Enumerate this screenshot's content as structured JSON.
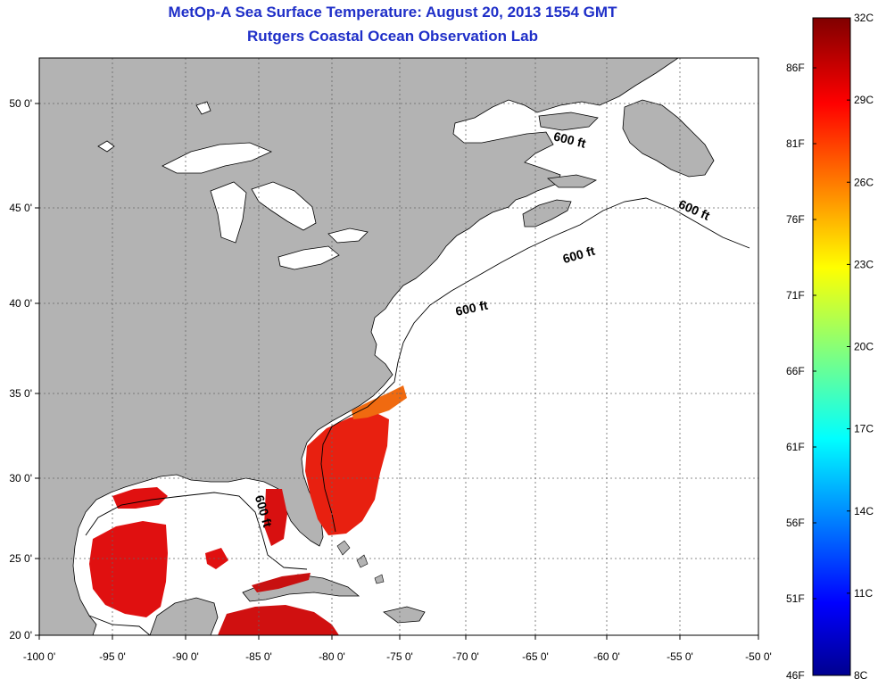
{
  "title": {
    "line1": "MetOp-A Sea Surface Temperature:  August 20, 2013 1554 GMT",
    "line2": "Rutgers Coastal Ocean Observation Lab"
  },
  "map": {
    "x_ticks": [
      "-100 0'",
      "-95 0'",
      "-90 0'",
      "-85 0'",
      "-80 0'",
      "-75 0'",
      "-70 0'",
      "-65 0'",
      "-60 0'",
      "-55 0'",
      "-50 0'"
    ],
    "y_ticks": [
      "50 0'",
      "45 0'",
      "40 0'",
      "35 0'",
      "30 0'",
      "25 0'",
      "20 0'"
    ],
    "isobath_labels": [
      "600 ft",
      "600 ft",
      "600 ft",
      "600 ft",
      "600 ft"
    ],
    "colors": {
      "land": "#b3b3b3",
      "water": "#ffffff",
      "sst_warm": "#e01010",
      "sst_orange": "#f06a10",
      "title": "#1f2fc8"
    }
  },
  "colorbar": {
    "celsius_labels": [
      "32C",
      "29C",
      "26C",
      "23C",
      "20C",
      "17C",
      "14C",
      "11C",
      "8C"
    ],
    "fahrenheit_labels": [
      "86F",
      "81F",
      "76F",
      "71F",
      "66F",
      "61F",
      "56F",
      "51F",
      "46F"
    ],
    "range_c": [
      8,
      32
    ],
    "colormap": "jet"
  }
}
